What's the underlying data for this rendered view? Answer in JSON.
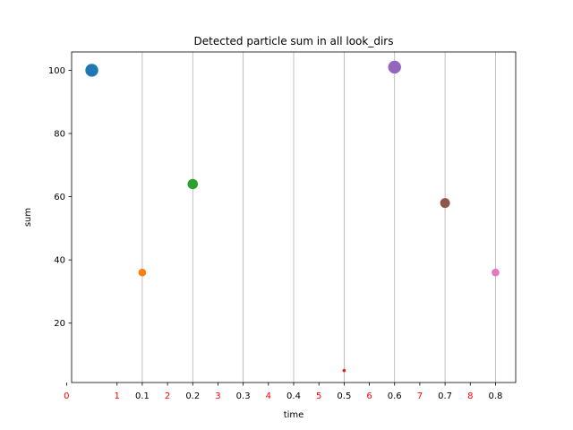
{
  "chart_data": {
    "type": "scatter",
    "title": "Detected particle sum in all look_dirs",
    "xlabel": "time",
    "ylabel": "sum",
    "xlim": [
      -0.04,
      0.84
    ],
    "ylim": [
      1.2,
      105.8
    ],
    "grid": "vertical",
    "x_ticks_black": [
      {
        "value": 0.1,
        "label": "0.1"
      },
      {
        "value": 0.2,
        "label": "0.2"
      },
      {
        "value": 0.3,
        "label": "0.3"
      },
      {
        "value": 0.4,
        "label": "0.4"
      },
      {
        "value": 0.5,
        "label": "0.5"
      },
      {
        "value": 0.6,
        "label": "0.6"
      },
      {
        "value": 0.7,
        "label": "0.7"
      },
      {
        "value": 0.8,
        "label": "0.8"
      }
    ],
    "x_ticks_red": [
      {
        "value": 0.0,
        "label": "0"
      },
      {
        "value": 0.1,
        "label": "1"
      },
      {
        "value": 0.2,
        "label": "2"
      },
      {
        "value": 0.3,
        "label": "3"
      },
      {
        "value": 0.4,
        "label": "4"
      },
      {
        "value": 0.5,
        "label": "5"
      },
      {
        "value": 0.6,
        "label": "6"
      },
      {
        "value": 0.7,
        "label": "7"
      },
      {
        "value": 0.8,
        "label": "8"
      }
    ],
    "y_ticks": [
      20,
      40,
      60,
      80,
      100
    ],
    "points": [
      {
        "x": 0.0,
        "y": 100,
        "color": "#1f77b4"
      },
      {
        "x": 0.1,
        "y": 36,
        "color": "#ff7f0e"
      },
      {
        "x": 0.2,
        "y": 64,
        "color": "#2ca02c"
      },
      {
        "x": 0.5,
        "y": 5,
        "color": "#d62728"
      },
      {
        "x": 0.6,
        "y": 101,
        "color": "#9467bd"
      },
      {
        "x": 0.7,
        "y": 58,
        "color": "#8c564b"
      },
      {
        "x": 0.8,
        "y": 36,
        "color": "#e377c2"
      }
    ],
    "colors": {
      "grid": "#b0b0b0",
      "axis": "#000000",
      "red_label": "#ff0000"
    }
  }
}
